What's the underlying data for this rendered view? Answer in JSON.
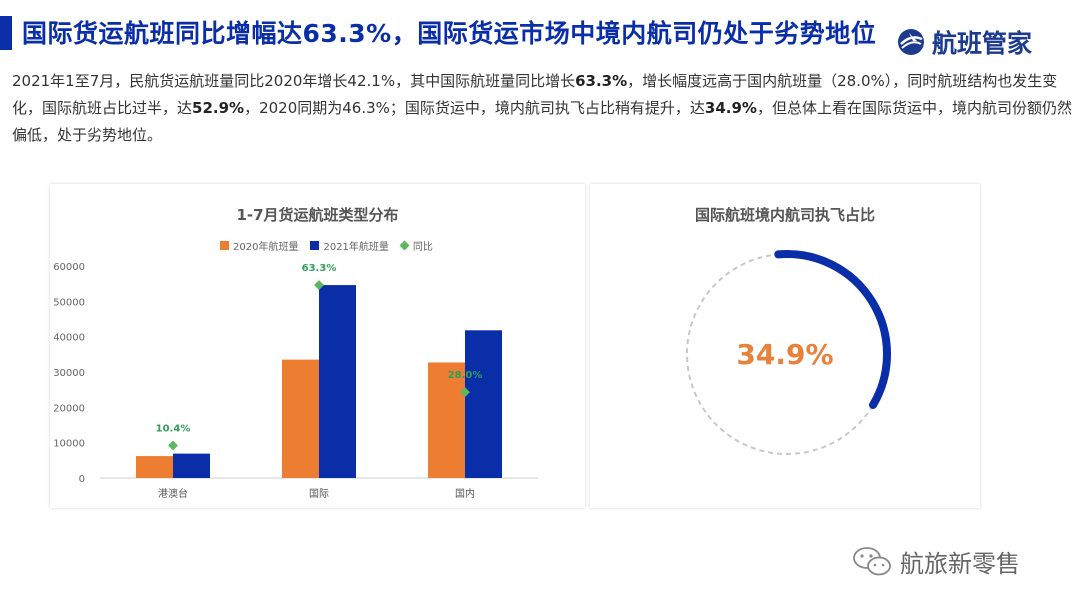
{
  "header": {
    "title": "国际货运航班同比增幅达63.3%，国际货运市场中境内航司仍处于劣势地位",
    "logo_text": "航班管家",
    "accent": "#0a2ea8"
  },
  "paragraph": {
    "p1": "2021年1至7月，民航货运航班量同比2020年增长42.1%，其中国际航班量同比增长",
    "b1": "63.3%",
    "p2": "，增长幅度远高于国内航班量（28.0%），同时航班结构也发生变化，国际航班占比过半，达",
    "b2": "52.9%",
    "p3": "，2020同期为46.3%；国际货运中，境内航司执飞占比稍有提升，达",
    "b3": "34.9%",
    "p4": "，但总体上看在国际货运中，境内航司份额仍然偏低，处于劣势地位。"
  },
  "chart_data": [
    {
      "type": "bar",
      "title": "1-7月货运航班类型分布",
      "categories": [
        "港澳台",
        "国际",
        "国内"
      ],
      "series": [
        {
          "name": "2020年航班量",
          "values": [
            6200,
            33500,
            32700
          ],
          "color": "#ed7d31"
        },
        {
          "name": "2021年航班量",
          "values": [
            6900,
            54600,
            41800
          ],
          "color": "#0a2ea8"
        }
      ],
      "yoy": {
        "name": "同比",
        "values": [
          9200,
          54600,
          24300
        ],
        "labels": [
          "10.4%",
          "63.3%",
          "28.0%"
        ],
        "color": "#5cb85c"
      },
      "ylim": [
        0,
        60000
      ],
      "yticks": [
        "0",
        "10000",
        "20000",
        "30000",
        "40000",
        "50000",
        "60000"
      ],
      "legend_position": "top",
      "grid": false
    },
    {
      "type": "pie",
      "title": "国际航班境内航司执飞占比",
      "value": 34.9,
      "value_label": "34.9%",
      "color": "#0a2ea8",
      "track": "dashed-gray"
    }
  ],
  "watermark": {
    "text": "航旅新零售",
    "icon": "wechat-icon"
  }
}
